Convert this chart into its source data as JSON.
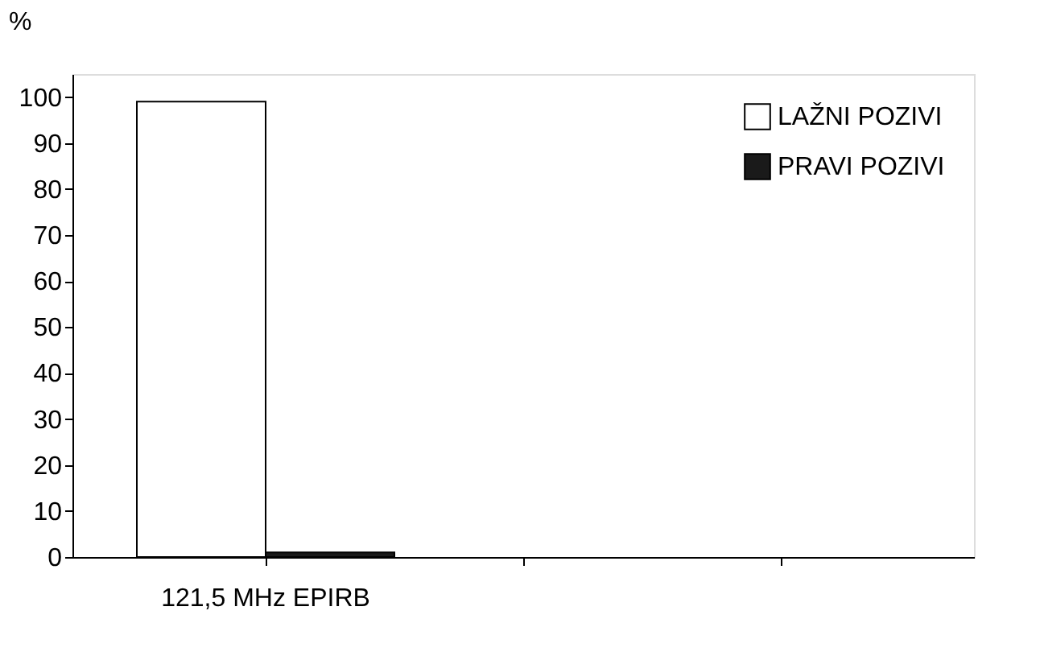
{
  "chart_data": {
    "type": "bar",
    "ylabel": "%",
    "categories": [
      "121,5 MHz EPIRB",
      null,
      null
    ],
    "series": [
      {
        "name": "LAŽNI POZIVI",
        "color": "#ffffff",
        "values": [
          99,
          null,
          null
        ]
      },
      {
        "name": "PRAVI POZIVI",
        "color": "#1a1a1a",
        "values": [
          1,
          null,
          null
        ]
      }
    ],
    "ylim": [
      0,
      105
    ],
    "yticks": [
      0,
      10,
      20,
      30,
      40,
      50,
      60,
      70,
      80,
      90,
      100
    ],
    "grid": false,
    "legend": "top right"
  }
}
